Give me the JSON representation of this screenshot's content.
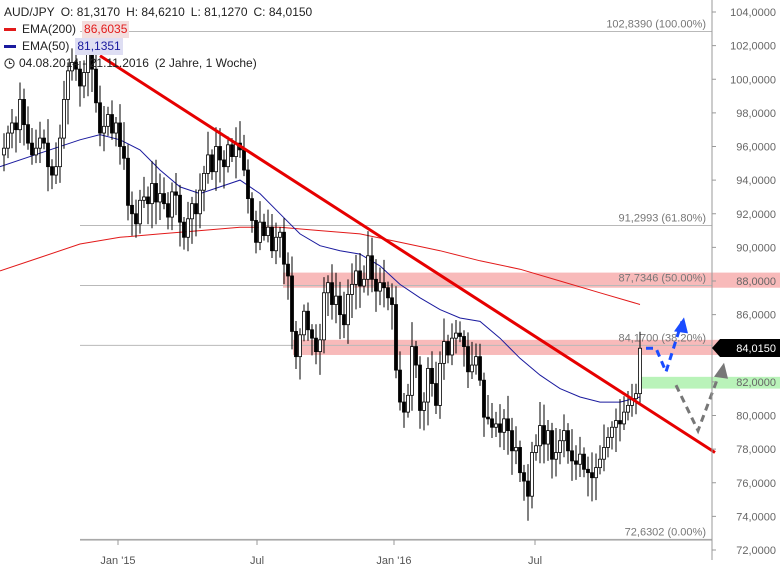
{
  "header": {
    "symbol": "AUD/JPY",
    "open": "O: 81,3170",
    "high": "H: 84,6210",
    "low": "L: 81,1270",
    "close": "C: 84,0150",
    "ema200_label": "EMA(200)",
    "ema200_value": "86,6035",
    "ema50_label": "EMA(50)",
    "ema50_value": "81,1351",
    "period": "04.08.2014 - 21.11.2016",
    "period_note": "(2 Jahre, 1 Woche)"
  },
  "colors": {
    "ema200": "#e21a1a",
    "ema50": "#1a1a9e",
    "trendline": "#e60000",
    "zone": "#f5a3a3",
    "green_zone": "#a8f0a8",
    "projection_up": "#1a4cff",
    "projection_down": "#777777",
    "price_tag": "#000000"
  },
  "chart_data": {
    "type": "candlestick",
    "ylim": [
      72,
      104
    ],
    "x_ticks": [
      "Jan '15",
      "Jul",
      "Jan '16",
      "Jul"
    ],
    "y_ticks": [
      "72,0000",
      "74,0000",
      "76,0000",
      "78,0000",
      "80,0000",
      "82,0000",
      "84,0000",
      "86,0000",
      "88,0000",
      "90,0000",
      "92,0000",
      "94,0000",
      "96,0000",
      "98,0000",
      "100,0000",
      "102,0000",
      "104,0000"
    ],
    "y_tick_values": [
      72,
      74,
      76,
      78,
      80,
      82,
      84,
      86,
      88,
      90,
      92,
      94,
      96,
      98,
      100,
      102,
      104
    ],
    "last_price": "84,0150",
    "last_value": 84.015,
    "fib_levels": [
      {
        "label": "102,8390 (100.00%)",
        "value": 102.839
      },
      {
        "label": "91,2993 (61.80%)",
        "value": 91.2993
      },
      {
        "label": "87,7346 (50.00%)",
        "value": 87.7346
      },
      {
        "label": "84,1700 (38.20%)",
        "value": 84.17
      },
      {
        "label": "72,6302 (0.00%)",
        "value": 72.6302
      }
    ],
    "resistance_zones": [
      [
        87.6,
        88.5
      ],
      [
        84.5,
        83.6
      ]
    ],
    "support_zone": [
      81.6,
      82.3
    ],
    "close_points": [
      [
        0,
        95.5
      ],
      [
        4,
        95.9
      ],
      [
        8,
        96.8
      ],
      [
        12,
        97.4
      ],
      [
        16,
        97.0
      ],
      [
        20,
        98.8
      ],
      [
        24,
        97.3
      ],
      [
        28,
        96.2
      ],
      [
        32,
        95.5
      ],
      [
        36,
        95.9
      ],
      [
        40,
        96.5
      ],
      [
        44,
        96.2
      ],
      [
        48,
        94.8
      ],
      [
        52,
        94.3
      ],
      [
        56,
        94.8
      ],
      [
        60,
        96.5
      ],
      [
        64,
        98.8
      ],
      [
        68,
        100.5
      ],
      [
        72,
        101.0
      ],
      [
        76,
        100.6
      ],
      [
        80,
        99.6
      ],
      [
        84,
        100.4
      ],
      [
        88,
        101.6
      ],
      [
        92,
        100.6
      ],
      [
        96,
        98.6
      ],
      [
        100,
        96.8
      ],
      [
        104,
        97.2
      ],
      [
        108,
        97.9
      ],
      [
        112,
        96.8
      ],
      [
        116,
        97.4
      ],
      [
        120,
        96.0
      ],
      [
        124,
        95.3
      ],
      [
        128,
        92.5
      ],
      [
        132,
        92.0
      ],
      [
        136,
        91.4
      ],
      [
        140,
        92.8
      ],
      [
        144,
        93.0
      ],
      [
        148,
        92.6
      ],
      [
        152,
        93.8
      ],
      [
        156,
        92.7
      ],
      [
        160,
        93.2
      ],
      [
        164,
        92.6
      ],
      [
        168,
        91.8
      ],
      [
        172,
        93.3
      ],
      [
        176,
        93.1
      ],
      [
        180,
        91.5
      ],
      [
        184,
        90.6
      ],
      [
        188,
        91.7
      ],
      [
        192,
        92.6
      ],
      [
        196,
        92.0
      ],
      [
        200,
        93.4
      ],
      [
        204,
        94.4
      ],
      [
        208,
        95.5
      ],
      [
        212,
        94.5
      ],
      [
        216,
        96.0
      ],
      [
        220,
        95.2
      ],
      [
        224,
        94.8
      ],
      [
        228,
        96.1
      ],
      [
        232,
        95.4
      ],
      [
        236,
        96.2
      ],
      [
        240,
        95.8
      ],
      [
        244,
        94.6
      ],
      [
        248,
        92.9
      ],
      [
        252,
        91.6
      ],
      [
        256,
        90.3
      ],
      [
        260,
        91.5
      ],
      [
        264,
        90.7
      ],
      [
        268,
        91.2
      ],
      [
        272,
        89.8
      ],
      [
        276,
        90.6
      ],
      [
        280,
        90.9
      ],
      [
        284,
        89.0
      ],
      [
        288,
        88.3
      ],
      [
        292,
        85.0
      ],
      [
        296,
        83.5
      ],
      [
        300,
        84.8
      ],
      [
        304,
        86.2
      ],
      [
        308,
        85.1
      ],
      [
        312,
        84.6
      ],
      [
        316,
        83.8
      ],
      [
        320,
        84.5
      ],
      [
        324,
        87.3
      ],
      [
        328,
        87.9
      ],
      [
        332,
        86.6
      ],
      [
        336,
        87.1
      ],
      [
        340,
        86.0
      ],
      [
        344,
        85.4
      ],
      [
        348,
        87.2
      ],
      [
        352,
        87.8
      ],
      [
        356,
        88.6
      ],
      [
        360,
        87.7
      ],
      [
        364,
        88.1
      ],
      [
        368,
        89.5
      ],
      [
        372,
        88.1
      ],
      [
        376,
        87.4
      ],
      [
        380,
        87.9
      ],
      [
        384,
        87.6
      ],
      [
        388,
        87.0
      ],
      [
        392,
        86.6
      ],
      [
        396,
        82.7
      ],
      [
        400,
        80.8
      ],
      [
        404,
        80.2
      ],
      [
        408,
        81.2
      ],
      [
        412,
        84.1
      ],
      [
        416,
        83.0
      ],
      [
        420,
        80.3
      ],
      [
        424,
        80.8
      ],
      [
        428,
        82.8
      ],
      [
        432,
        81.9
      ],
      [
        436,
        80.6
      ],
      [
        440,
        83.1
      ],
      [
        444,
        84.4
      ],
      [
        448,
        83.6
      ],
      [
        452,
        84.6
      ],
      [
        456,
        84.9
      ],
      [
        460,
        84.7
      ],
      [
        464,
        84.1
      ],
      [
        468,
        82.6
      ],
      [
        472,
        83.0
      ],
      [
        476,
        83.5
      ],
      [
        480,
        82.1
      ],
      [
        484,
        79.9
      ],
      [
        488,
        79.8
      ],
      [
        492,
        79.3
      ],
      [
        496,
        79.5
      ],
      [
        500,
        79.0
      ],
      [
        504,
        79.8
      ],
      [
        508,
        79.1
      ],
      [
        512,
        77.9
      ],
      [
        516,
        78.1
      ],
      [
        520,
        76.6
      ],
      [
        524,
        76.1
      ],
      [
        528,
        75.2
      ],
      [
        532,
        77.8
      ],
      [
        536,
        78.2
      ],
      [
        540,
        79.4
      ],
      [
        544,
        78.3
      ],
      [
        548,
        79.1
      ],
      [
        552,
        77.4
      ],
      [
        556,
        77.8
      ],
      [
        560,
        78.5
      ],
      [
        564,
        79.1
      ],
      [
        568,
        77.9
      ],
      [
        572,
        77.3
      ],
      [
        576,
        77.1
      ],
      [
        580,
        77.7
      ],
      [
        584,
        76.8
      ],
      [
        588,
        76.6
      ],
      [
        592,
        76.3
      ],
      [
        596,
        76.9
      ],
      [
        600,
        77.4
      ],
      [
        604,
        78.1
      ],
      [
        608,
        78.7
      ],
      [
        612,
        79.3
      ],
      [
        616,
        79.7
      ],
      [
        620,
        79.5
      ],
      [
        624,
        80.2
      ],
      [
        628,
        80.6
      ],
      [
        632,
        81.0
      ],
      [
        636,
        81.3
      ],
      [
        640,
        84.0
      ]
    ],
    "ema50_points": [
      [
        0,
        94.8
      ],
      [
        40,
        95.6
      ],
      [
        80,
        96.4
      ],
      [
        100,
        96.7
      ],
      [
        120,
        96.4
      ],
      [
        140,
        95.8
      ],
      [
        160,
        94.6
      ],
      [
        180,
        93.6
      ],
      [
        200,
        93.2
      ],
      [
        220,
        93.6
      ],
      [
        240,
        94.0
      ],
      [
        260,
        93.2
      ],
      [
        280,
        92.0
      ],
      [
        300,
        90.8
      ],
      [
        320,
        90.1
      ],
      [
        340,
        89.8
      ],
      [
        360,
        89.6
      ],
      [
        380,
        88.9
      ],
      [
        400,
        87.8
      ],
      [
        420,
        87.0
      ],
      [
        440,
        86.3
      ],
      [
        460,
        85.8
      ],
      [
        480,
        85.6
      ],
      [
        500,
        84.6
      ],
      [
        520,
        83.4
      ],
      [
        540,
        82.4
      ],
      [
        560,
        81.6
      ],
      [
        580,
        81.1
      ],
      [
        600,
        80.8
      ],
      [
        620,
        80.8
      ],
      [
        640,
        81.1
      ]
    ],
    "ema200_points": [
      [
        0,
        88.6
      ],
      [
        40,
        89.4
      ],
      [
        80,
        90.2
      ],
      [
        120,
        90.6
      ],
      [
        160,
        90.8
      ],
      [
        200,
        91.0
      ],
      [
        240,
        91.2
      ],
      [
        280,
        91.2
      ],
      [
        320,
        91.0
      ],
      [
        360,
        90.8
      ],
      [
        400,
        90.3
      ],
      [
        440,
        89.8
      ],
      [
        480,
        89.2
      ],
      [
        520,
        88.7
      ],
      [
        560,
        88.0
      ],
      [
        600,
        87.3
      ],
      [
        640,
        86.6
      ]
    ],
    "trendline": [
      [
        100,
        101.4
      ],
      [
        715,
        77.8
      ]
    ],
    "projection_blue": [
      [
        646,
        84.0
      ],
      [
        656,
        84.0
      ],
      [
        666,
        82.6
      ],
      [
        682,
        85.6
      ]
    ],
    "projection_gray": [
      [
        676,
        81.8
      ],
      [
        698,
        79.1
      ],
      [
        722,
        82.9
      ]
    ]
  }
}
